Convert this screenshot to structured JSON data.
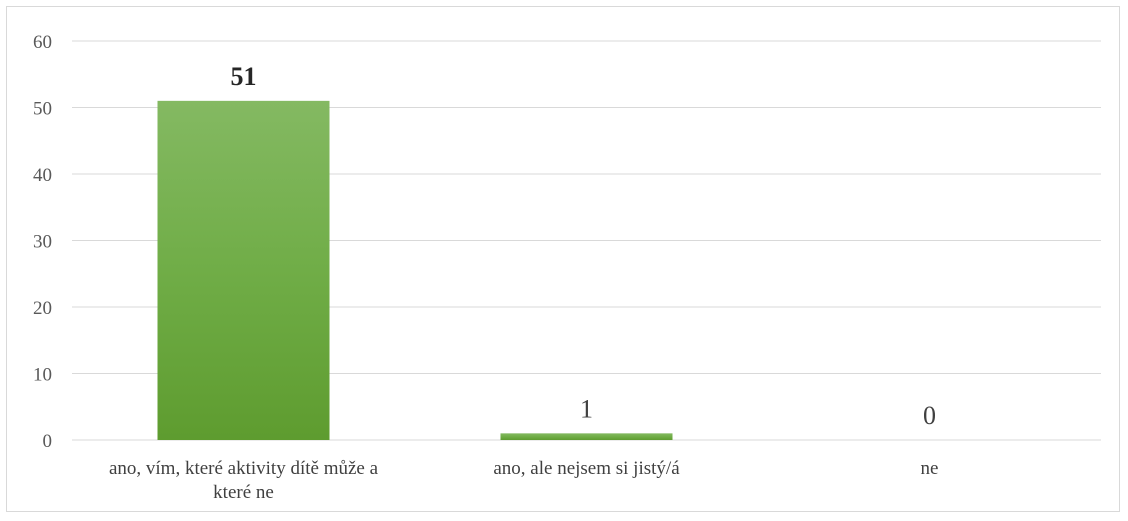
{
  "chart_data": {
    "type": "bar",
    "categories": [
      "ano, vím, které aktivity dítě může a které ne",
      "ano, ale nejsem si jistý/á",
      "ne"
    ],
    "category_label_lines": [
      [
        "ano, vím, které aktivity dítě může a",
        "které ne"
      ],
      [
        "ano, ale nejsem si jistý/á"
      ],
      [
        "ne"
      ]
    ],
    "values": [
      51,
      1,
      0
    ],
    "data_labels": [
      "51",
      "1",
      "0"
    ],
    "data_label_bold": [
      true,
      false,
      false
    ],
    "ylim": [
      0,
      60
    ],
    "yticks": [
      0,
      10,
      20,
      30,
      40,
      50,
      60
    ],
    "ytick_labels": [
      "0",
      "10",
      "20",
      "30",
      "40",
      "50",
      "60"
    ],
    "grid": true,
    "legend": "none",
    "title": "",
    "xlabel": "",
    "ylabel": "",
    "colors": {
      "bar_top": "#84b962",
      "bar_mid": "#70ad47",
      "bar_bottom": "#5e9c2f",
      "gridline": "#d9d9d9",
      "axis": "#d9d9d9"
    }
  }
}
